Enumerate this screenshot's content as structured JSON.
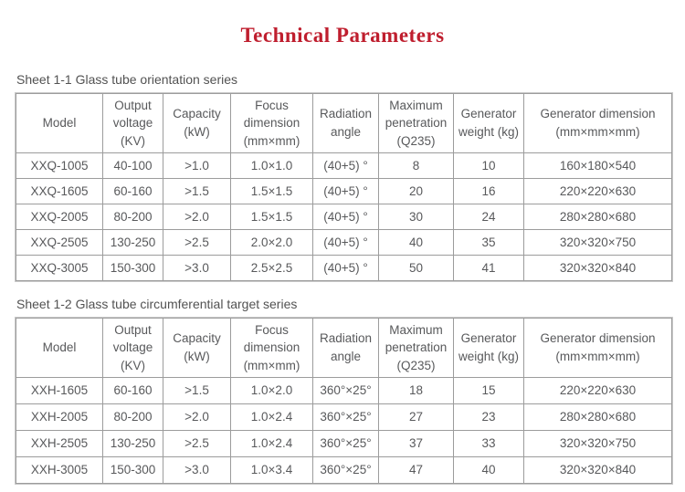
{
  "page": {
    "title": "Technical Parameters",
    "colors": {
      "title_red": "#bf1e2e",
      "body_text_gray": "#58595b",
      "caption_gray": "#525252",
      "grid_line_gray": "#9c9c9c",
      "background": "#ffffff"
    }
  },
  "tables": [
    {
      "caption": "Sheet 1-1 Glass tube orientation series",
      "headers": [
        "Model",
        "Output voltage (KV)",
        "Capacity (kW)",
        "Focus dimension (mm×mm)",
        "Radiation angle",
        "Maximum penetration (Q235)",
        "Generator weight (kg)",
        "Generator dimension (mm×mm×mm)"
      ],
      "rows": [
        [
          "XXQ-1005",
          "40-100",
          ">1.0",
          "1.0×1.0",
          "(40+5) °",
          "8",
          "10",
          "160×180×540"
        ],
        [
          "XXQ-1605",
          "60-160",
          ">1.5",
          "1.5×1.5",
          "(40+5) °",
          "20",
          "16",
          "220×220×630"
        ],
        [
          "XXQ-2005",
          "80-200",
          ">2.0",
          "1.5×1.5",
          "(40+5) °",
          "30",
          "24",
          "280×280×680"
        ],
        [
          "XXQ-2505",
          "130-250",
          ">2.5",
          "2.0×2.0",
          "(40+5) °",
          "40",
          "35",
          "320×320×750"
        ],
        [
          "XXQ-3005",
          "150-300",
          ">3.0",
          "2.5×2.5",
          "(40+5) °",
          "50",
          "41",
          "320×320×840"
        ]
      ]
    },
    {
      "caption": "Sheet 1-2 Glass tube circumferential target series",
      "headers": [
        "Model",
        "Output voltage (KV)",
        "Capacity (kW)",
        "Focus dimension (mm×mm)",
        "Radiation angle",
        "Maximum penetration (Q235)",
        "Generator weight (kg)",
        "Generator dimension (mm×mm×mm)"
      ],
      "rows": [
        [
          "XXH-1605",
          "60-160",
          ">1.5",
          "1.0×2.0",
          "360°×25°",
          "18",
          "15",
          "220×220×630"
        ],
        [
          "XXH-2005",
          "80-200",
          ">2.0",
          "1.0×2.4",
          "360°×25°",
          "27",
          "23",
          "280×280×680"
        ],
        [
          "XXH-2505",
          "130-250",
          ">2.5",
          "1.0×2.4",
          "360°×25°",
          "37",
          "33",
          "320×320×750"
        ],
        [
          "XXH-3005",
          "150-300",
          ">3.0",
          "1.0×3.4",
          "360°×25°",
          "47",
          "40",
          "320×320×840"
        ]
      ]
    }
  ]
}
